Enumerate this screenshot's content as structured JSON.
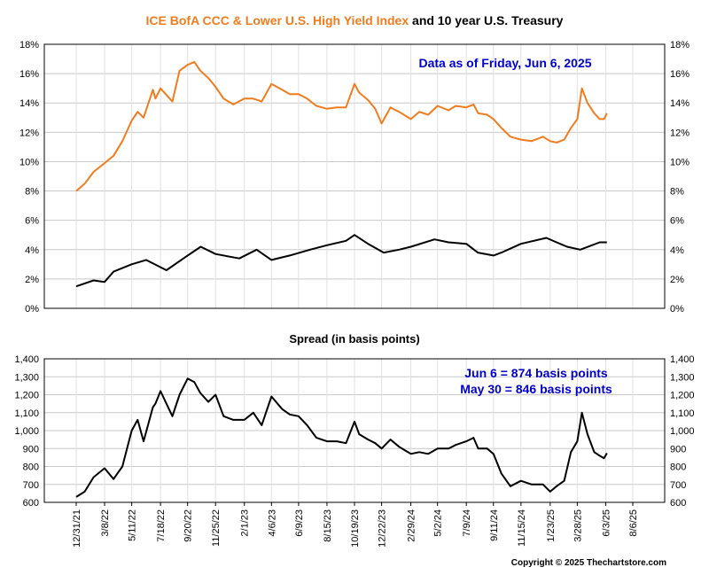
{
  "title": {
    "part1": "ICE BofA CCC & Lower U.S. High Yield Index",
    "part2": " and 10 year U.S. Treasury"
  },
  "colors": {
    "ccc": "#f07c1e",
    "treasury": "#000000",
    "spread": "#000000",
    "annotation": "#0000cc",
    "grid": "#c8c8c8"
  },
  "annotations": {
    "as_of": "Data as of Friday, Jun 6, 2025",
    "spread_line1": "Jun 6 = 874 basis points",
    "spread_line2": "May 30 = 846 basis points"
  },
  "footer": {
    "copyright": "Copyright © 2025 Thechartstore.com"
  },
  "chart_data": [
    {
      "type": "line",
      "title": "ICE BofA CCC & Lower U.S. High Yield Index and 10 year U.S. Treasury",
      "ylim": [
        0,
        18
      ],
      "y_tick_labels": [
        "0%",
        "2%",
        "4%",
        "6%",
        "8%",
        "10%",
        "12%",
        "14%",
        "16%",
        "18%"
      ],
      "grid": true,
      "series": [
        {
          "name": "ICE BofA CCC & Lower U.S. High Yield Index",
          "x": [
            "2021-12-31",
            "2022-01-20",
            "2022-02-10",
            "2022-03-08",
            "2022-03-29",
            "2022-04-19",
            "2022-05-11",
            "2022-05-25",
            "2022-06-08",
            "2022-06-30",
            "2022-07-06",
            "2022-07-18",
            "2022-08-15",
            "2022-09-01",
            "2022-09-20",
            "2022-10-06",
            "2022-10-20",
            "2022-11-08",
            "2022-11-25",
            "2022-12-14",
            "2023-01-06",
            "2023-02-01",
            "2023-02-22",
            "2023-03-14",
            "2023-04-06",
            "2023-05-01",
            "2023-05-19",
            "2023-06-09",
            "2023-06-29",
            "2023-07-21",
            "2023-08-15",
            "2023-09-07",
            "2023-09-29",
            "2023-10-19",
            "2023-10-30",
            "2023-11-20",
            "2023-12-07",
            "2023-12-22",
            "2024-01-12",
            "2024-02-01",
            "2024-02-29",
            "2024-03-20",
            "2024-04-10",
            "2024-05-02",
            "2024-05-28",
            "2024-06-14",
            "2024-07-09",
            "2024-07-26",
            "2024-08-06",
            "2024-08-27",
            "2024-09-11",
            "2024-09-30",
            "2024-10-21",
            "2024-11-15",
            "2024-12-10",
            "2025-01-06",
            "2025-01-23",
            "2025-02-07",
            "2025-02-25",
            "2025-03-13",
            "2025-03-28",
            "2025-04-08",
            "2025-04-21",
            "2025-05-07",
            "2025-05-20",
            "2025-05-30",
            "2025-06-06"
          ],
          "y": [
            8.0,
            8.5,
            9.3,
            9.9,
            10.4,
            11.4,
            12.8,
            13.4,
            13.0,
            14.9,
            14.3,
            15.0,
            14.1,
            16.2,
            16.6,
            16.8,
            16.2,
            15.7,
            15.1,
            14.3,
            13.9,
            14.3,
            14.3,
            14.1,
            15.3,
            14.9,
            14.6,
            14.6,
            14.3,
            13.8,
            13.6,
            13.7,
            13.7,
            15.3,
            14.7,
            14.2,
            13.6,
            12.6,
            13.7,
            13.4,
            12.9,
            13.4,
            13.2,
            13.8,
            13.5,
            13.8,
            13.7,
            13.9,
            13.3,
            13.2,
            12.9,
            12.3,
            11.7,
            11.5,
            11.4,
            11.7,
            11.4,
            11.3,
            11.5,
            12.3,
            12.9,
            15.0,
            14.0,
            13.3,
            12.9,
            12.9,
            13.3
          ]
        },
        {
          "name": "10 year U.S. Treasury",
          "x": [
            "2021-12-31",
            "2022-02-10",
            "2022-03-08",
            "2022-03-29",
            "2022-05-11",
            "2022-06-14",
            "2022-08-01",
            "2022-09-20",
            "2022-10-21",
            "2022-11-25",
            "2023-01-20",
            "2023-03-02",
            "2023-04-06",
            "2023-05-19",
            "2023-07-06",
            "2023-08-15",
            "2023-09-29",
            "2023-10-19",
            "2023-11-20",
            "2023-12-27",
            "2024-02-01",
            "2024-02-29",
            "2024-04-25",
            "2024-05-28",
            "2024-07-09",
            "2024-08-05",
            "2024-09-11",
            "2024-09-30",
            "2024-11-15",
            "2025-01-14",
            "2025-02-07",
            "2025-03-04",
            "2025-04-04",
            "2025-05-20",
            "2025-06-06"
          ],
          "y": [
            1.5,
            1.9,
            1.8,
            2.5,
            3.0,
            3.3,
            2.6,
            3.6,
            4.2,
            3.7,
            3.4,
            4.0,
            3.3,
            3.6,
            4.0,
            4.3,
            4.6,
            5.0,
            4.4,
            3.8,
            4.0,
            4.2,
            4.7,
            4.5,
            4.4,
            3.8,
            3.6,
            3.8,
            4.4,
            4.8,
            4.5,
            4.2,
            4.0,
            4.5,
            4.5
          ]
        }
      ]
    },
    {
      "type": "line",
      "title": "Spread (in basis points)",
      "ylim": [
        600,
        1400
      ],
      "y_tick_labels": [
        "600",
        "700",
        "800",
        "900",
        "1,000",
        "1,100",
        "1,200",
        "1,300",
        "1,400"
      ],
      "x_tick_labels": [
        "12/31/21",
        "3/8/22",
        "5/11/22",
        "7/18/22",
        "9/20/22",
        "11/25/22",
        "2/1/23",
        "4/6/23",
        "6/9/23",
        "8/15/23",
        "10/19/23",
        "12/22/23",
        "2/29/24",
        "5/2/24",
        "7/9/24",
        "9/11/24",
        "11/15/24",
        "1/23/25",
        "3/28/25",
        "6/3/25",
        "8/6/25"
      ],
      "grid": true,
      "series": [
        {
          "name": "Spread",
          "x": [
            "2021-12-31",
            "2022-01-20",
            "2022-02-10",
            "2022-03-08",
            "2022-03-29",
            "2022-04-19",
            "2022-05-11",
            "2022-05-25",
            "2022-06-08",
            "2022-06-30",
            "2022-07-06",
            "2022-07-18",
            "2022-08-15",
            "2022-09-01",
            "2022-09-20",
            "2022-10-06",
            "2022-10-20",
            "2022-11-08",
            "2022-11-25",
            "2022-12-14",
            "2023-01-06",
            "2023-02-01",
            "2023-02-22",
            "2023-03-14",
            "2023-04-06",
            "2023-05-01",
            "2023-05-19",
            "2023-06-09",
            "2023-06-29",
            "2023-07-21",
            "2023-08-15",
            "2023-09-07",
            "2023-09-29",
            "2023-10-19",
            "2023-10-30",
            "2023-11-20",
            "2023-12-07",
            "2023-12-22",
            "2024-01-12",
            "2024-02-01",
            "2024-02-29",
            "2024-03-20",
            "2024-04-10",
            "2024-05-02",
            "2024-05-28",
            "2024-06-14",
            "2024-07-09",
            "2024-07-26",
            "2024-08-06",
            "2024-08-27",
            "2024-09-11",
            "2024-09-30",
            "2024-10-21",
            "2024-11-15",
            "2024-12-10",
            "2025-01-06",
            "2025-01-23",
            "2025-02-07",
            "2025-02-25",
            "2025-03-13",
            "2025-03-28",
            "2025-04-08",
            "2025-04-21",
            "2025-05-07",
            "2025-05-20",
            "2025-05-30",
            "2025-06-06"
          ],
          "y": [
            630,
            660,
            740,
            790,
            730,
            800,
            1000,
            1060,
            940,
            1130,
            1150,
            1220,
            1080,
            1200,
            1290,
            1270,
            1210,
            1160,
            1200,
            1080,
            1060,
            1060,
            1100,
            1030,
            1190,
            1120,
            1090,
            1080,
            1030,
            960,
            940,
            940,
            930,
            1050,
            980,
            950,
            930,
            900,
            950,
            910,
            870,
            880,
            870,
            900,
            900,
            920,
            940,
            960,
            900,
            900,
            870,
            760,
            690,
            720,
            700,
            700,
            660,
            690,
            720,
            880,
            940,
            1100,
            980,
            880,
            860,
            846,
            874
          ]
        }
      ]
    }
  ]
}
